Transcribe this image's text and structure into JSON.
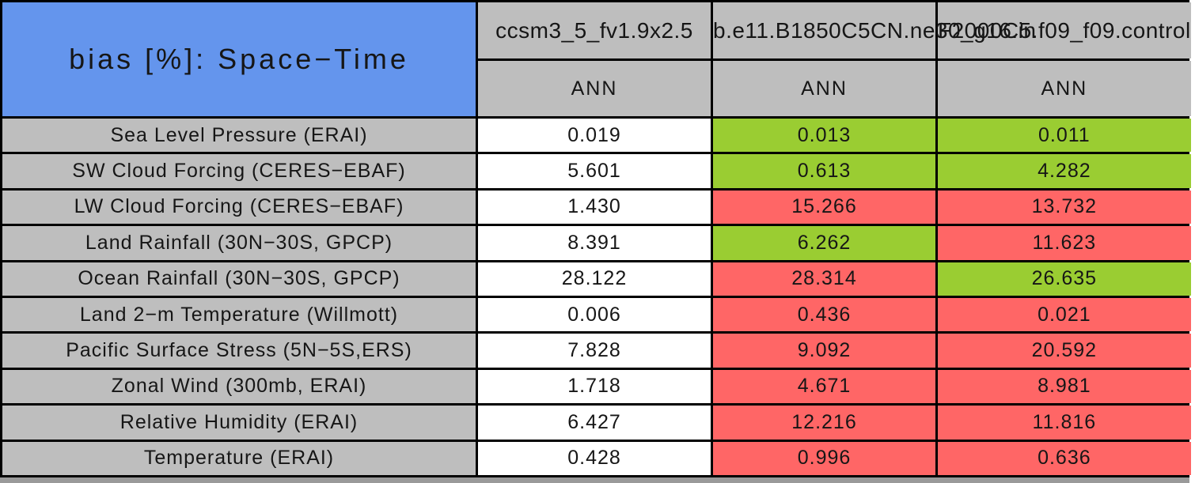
{
  "colors": {
    "title_blue": "#6495ED",
    "header_gray": "#BEBEBE",
    "good_green": "#9ACD32",
    "bad_red": "#FF6666",
    "neutral_white": "#FFFFFF",
    "border_black": "#000000",
    "bottom_strip_gray": "#9A9A9A"
  },
  "chart_data": {
    "type": "table",
    "title": "bias [%]: Space−Time",
    "metric": "bias [%]",
    "domain_label": "Space−Time",
    "columns": [
      {
        "model": "ccsm3_5_fv1.9x2.5",
        "season": "ANN"
      },
      {
        "model": "b.e11.B1850C5CN.ne30_g16.in",
        "season": "ANN"
      },
      {
        "model": "F2000C5.f09_f09.control",
        "season": "ANN"
      }
    ],
    "rows": [
      {
        "label": "Sea Level Pressure (ERAI)",
        "values": [
          "0.019",
          "0.013",
          "0.011"
        ],
        "cell_colors": [
          "white",
          "green",
          "green"
        ]
      },
      {
        "label": "SW Cloud Forcing (CERES−EBAF)",
        "values": [
          "5.601",
          "0.613",
          "4.282"
        ],
        "cell_colors": [
          "white",
          "green",
          "green"
        ]
      },
      {
        "label": "LW Cloud Forcing (CERES−EBAF)",
        "values": [
          "1.430",
          "15.266",
          "13.732"
        ],
        "cell_colors": [
          "white",
          "red",
          "red"
        ]
      },
      {
        "label": "Land Rainfall (30N−30S, GPCP)",
        "values": [
          "8.391",
          "6.262",
          "11.623"
        ],
        "cell_colors": [
          "white",
          "green",
          "red"
        ]
      },
      {
        "label": "Ocean Rainfall (30N−30S, GPCP)",
        "values": [
          "28.122",
          "28.314",
          "26.635"
        ],
        "cell_colors": [
          "white",
          "red",
          "green"
        ]
      },
      {
        "label": "Land 2−m Temperature (Willmott)",
        "values": [
          "0.006",
          "0.436",
          "0.021"
        ],
        "cell_colors": [
          "white",
          "red",
          "red"
        ]
      },
      {
        "label": "Pacific Surface Stress (5N−5S,ERS)",
        "values": [
          "7.828",
          "9.092",
          "20.592"
        ],
        "cell_colors": [
          "white",
          "red",
          "red"
        ]
      },
      {
        "label": "Zonal Wind (300mb, ERAI)",
        "values": [
          "1.718",
          "4.671",
          "8.981"
        ],
        "cell_colors": [
          "white",
          "red",
          "red"
        ]
      },
      {
        "label": "Relative Humidity (ERAI)",
        "values": [
          "6.427",
          "12.216",
          "11.816"
        ],
        "cell_colors": [
          "white",
          "red",
          "red"
        ]
      },
      {
        "label": "Temperature (ERAI)",
        "values": [
          "0.428",
          "0.996",
          "0.636"
        ],
        "cell_colors": [
          "white",
          "red",
          "red"
        ]
      }
    ]
  }
}
